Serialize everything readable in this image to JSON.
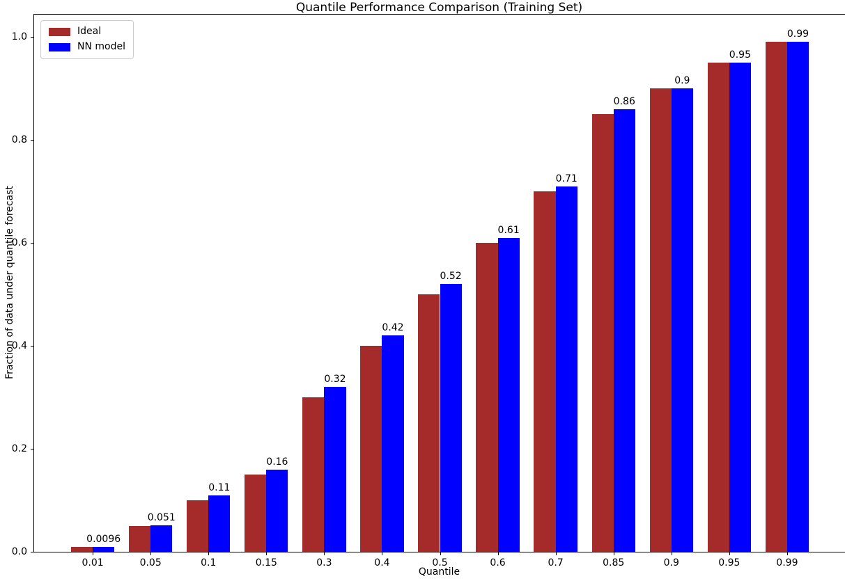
{
  "chart_data": {
    "type": "bar",
    "title": "Quantile Performance Comparison (Training Set)",
    "xlabel": "Quantile",
    "ylabel": "Fraction of data under quantile forecast",
    "categories": [
      "0.01",
      "0.05",
      "0.1",
      "0.15",
      "0.3",
      "0.4",
      "0.5",
      "0.6",
      "0.7",
      "0.85",
      "0.9",
      "0.95",
      "0.99"
    ],
    "series": [
      {
        "name": "Ideal",
        "color": "#A52A2A",
        "values": [
          0.01,
          0.05,
          0.1,
          0.15,
          0.3,
          0.4,
          0.5,
          0.6,
          0.7,
          0.85,
          0.9,
          0.95,
          0.99
        ]
      },
      {
        "name": "NN model",
        "color": "#0000FF",
        "values": [
          0.0096,
          0.051,
          0.11,
          0.16,
          0.32,
          0.42,
          0.52,
          0.61,
          0.71,
          0.86,
          0.9,
          0.95,
          0.99
        ]
      }
    ],
    "bar_labels": [
      "0.0096",
      "0.051",
      "0.11",
      "0.16",
      "0.32",
      "0.42",
      "0.52",
      "0.61",
      "0.71",
      "0.86",
      "0.9",
      "0.95",
      "0.99"
    ],
    "yticks": [
      "0.0",
      "0.2",
      "0.4",
      "0.6",
      "0.8",
      "1.0"
    ],
    "ylim": [
      0,
      1.043
    ],
    "xlim_units": [
      -1.0125,
      13.0125
    ],
    "grid": false,
    "legend_position": "upper left",
    "background_color": "#FFFFFF",
    "spine_color": "#000000"
  }
}
